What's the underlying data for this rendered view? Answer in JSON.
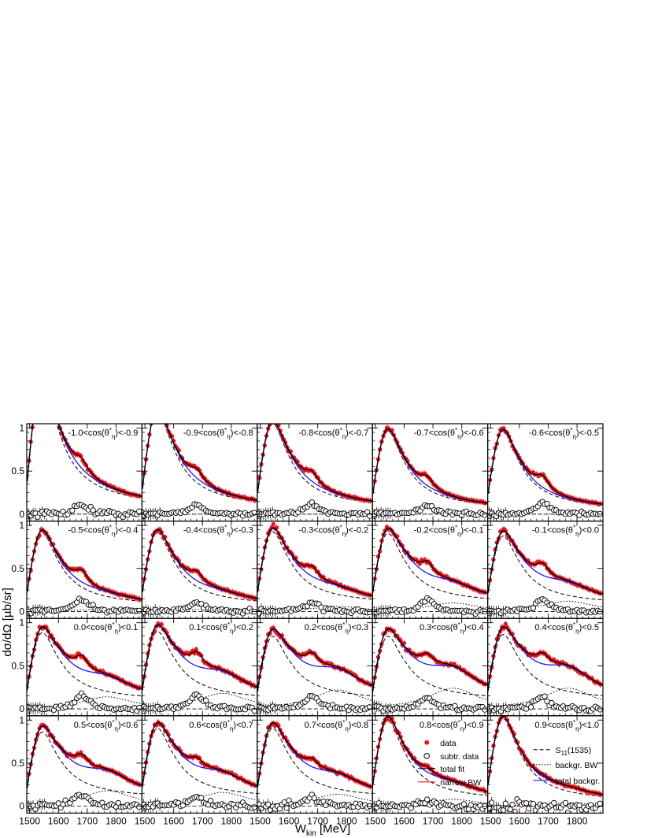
{
  "chart_data": {
    "type": "scatter",
    "ylabel": "dσ/dΩ [µb/sr]",
    "xlabel": "W_kin [MeV]",
    "xlabel_main": "W",
    "xlabel_sub": "kin",
    "xlabel_unit": " [MeV]",
    "xlim": [
      1490,
      1890
    ],
    "ylim": [
      -0.08,
      1.05
    ],
    "x_ticks": [
      1500,
      1600,
      1700,
      1800
    ],
    "y_ticks": [
      0,
      0.5,
      1
    ],
    "y_tick_labels": [
      "0",
      "0.5",
      "1"
    ],
    "colors": {
      "data": "#e8161b",
      "total_fit": "#000000",
      "narrow_bw": "#e8161b",
      "total_background": "#1a1ae6"
    },
    "legend": [
      {
        "key": "data",
        "label": "data",
        "marker": "filled-circle",
        "color": "#e8161b"
      },
      {
        "key": "subtr",
        "label": "subtr. data",
        "marker": "open-circle",
        "color": "#000000"
      },
      {
        "key": "total_fit",
        "label": "total fit",
        "line": "solid",
        "color": "#000000"
      },
      {
        "key": "narrow_bw",
        "label": "narrow BW",
        "line": "solid",
        "color": "#e8161b"
      },
      {
        "key": "s11",
        "label": "S",
        "sub": "11",
        "suffix": "(1535)",
        "line": "dashed",
        "color": "#000000"
      },
      {
        "key": "bkg_bw",
        "label": "backgr. BW",
        "line": "dotted",
        "color": "#000000"
      },
      {
        "key": "total_bkg",
        "label": "total backgr.",
        "line": "solid",
        "color": "#1a1ae6"
      }
    ],
    "panels": [
      {
        "label": {
          "lo": "-1.0",
          "hi": "-0.9"
        },
        "peak": 1.35,
        "tail": 0.15,
        "narrow": 0.12,
        "broad": 0.0,
        "noise": 0.035
      },
      {
        "label": {
          "lo": "-0.9",
          "hi": "-0.8"
        },
        "peak": 1.05,
        "tail": 0.12,
        "narrow": 0.11,
        "broad": 0.0,
        "noise": 0.02
      },
      {
        "label": {
          "lo": "-0.8",
          "hi": "-0.7"
        },
        "peak": 0.92,
        "tail": 0.12,
        "narrow": 0.12,
        "broad": 0.0,
        "noise": 0.02
      },
      {
        "label": {
          "lo": "-0.7",
          "hi": "-0.6"
        },
        "peak": 0.85,
        "tail": 0.09,
        "narrow": 0.11,
        "broad": 0.0,
        "noise": 0.02
      },
      {
        "label": {
          "lo": "-0.6",
          "hi": "-0.5"
        },
        "peak": 0.85,
        "tail": 0.07,
        "narrow": 0.14,
        "broad": 0.0,
        "noise": 0.02
      },
      {
        "label": {
          "lo": "-0.5",
          "hi": "-0.4"
        },
        "peak": 0.8,
        "tail": 0.1,
        "narrow": 0.14,
        "broad": 0.03,
        "noise": 0.025
      },
      {
        "label": {
          "lo": "-0.4",
          "hi": "-0.3"
        },
        "peak": 0.8,
        "tail": 0.11,
        "narrow": 0.11,
        "broad": 0.04,
        "noise": 0.025
      },
      {
        "label": {
          "lo": "-0.3",
          "hi": "-0.2"
        },
        "peak": 0.8,
        "tail": 0.15,
        "narrow": 0.12,
        "broad": 0.06,
        "noise": 0.025
      },
      {
        "label": {
          "lo": "-0.2",
          "hi": "-0.1"
        },
        "peak": 0.78,
        "tail": 0.17,
        "narrow": 0.14,
        "broad": 0.1,
        "noise": 0.025
      },
      {
        "label": {
          "lo": "-0.1",
          "hi": "0.0"
        },
        "peak": 0.76,
        "tail": 0.14,
        "narrow": 0.14,
        "broad": 0.12,
        "noise": 0.025
      },
      {
        "label": {
          "lo": "0.0",
          "hi": "0.1"
        },
        "peak": 0.76,
        "tail": 0.17,
        "narrow": 0.16,
        "broad": 0.14,
        "noise": 0.025
      },
      {
        "label": {
          "lo": "0.1",
          "hi": "0.2"
        },
        "peak": 0.77,
        "tail": 0.18,
        "narrow": 0.17,
        "broad": 0.18,
        "noise": 0.025
      },
      {
        "label": {
          "lo": "0.2",
          "hi": "0.3"
        },
        "peak": 0.72,
        "tail": 0.18,
        "narrow": 0.15,
        "broad": 0.22,
        "noise": 0.025
      },
      {
        "label": {
          "lo": "0.3",
          "hi": "0.4"
        },
        "peak": 0.72,
        "tail": 0.18,
        "narrow": 0.13,
        "broad": 0.24,
        "noise": 0.03
      },
      {
        "label": {
          "lo": "0.4",
          "hi": "0.5"
        },
        "peak": 0.74,
        "tail": 0.18,
        "narrow": 0.13,
        "broad": 0.24,
        "noise": 0.03
      },
      {
        "label": {
          "lo": "0.5",
          "hi": "0.6"
        },
        "peak": 0.74,
        "tail": 0.16,
        "narrow": 0.14,
        "broad": 0.18,
        "noise": 0.03
      },
      {
        "label": {
          "lo": "0.6",
          "hi": "0.7"
        },
        "peak": 0.78,
        "tail": 0.16,
        "narrow": 0.1,
        "broad": 0.16,
        "noise": 0.035
      },
      {
        "label": {
          "lo": "0.7",
          "hi": "0.8"
        },
        "peak": 0.78,
        "tail": 0.16,
        "narrow": 0.1,
        "broad": 0.14,
        "noise": 0.04
      },
      {
        "label": {
          "lo": "0.8",
          "hi": "0.9"
        },
        "peak": 0.88,
        "tail": 0.1,
        "narrow": 0.06,
        "broad": 0.08,
        "noise": 0.04
      },
      {
        "label": {
          "lo": "0.9",
          "hi": "1.0"
        },
        "peak": 0.9,
        "tail": 0.07,
        "narrow": 0.02,
        "broad": 0.04,
        "noise": 0.06
      }
    ]
  }
}
